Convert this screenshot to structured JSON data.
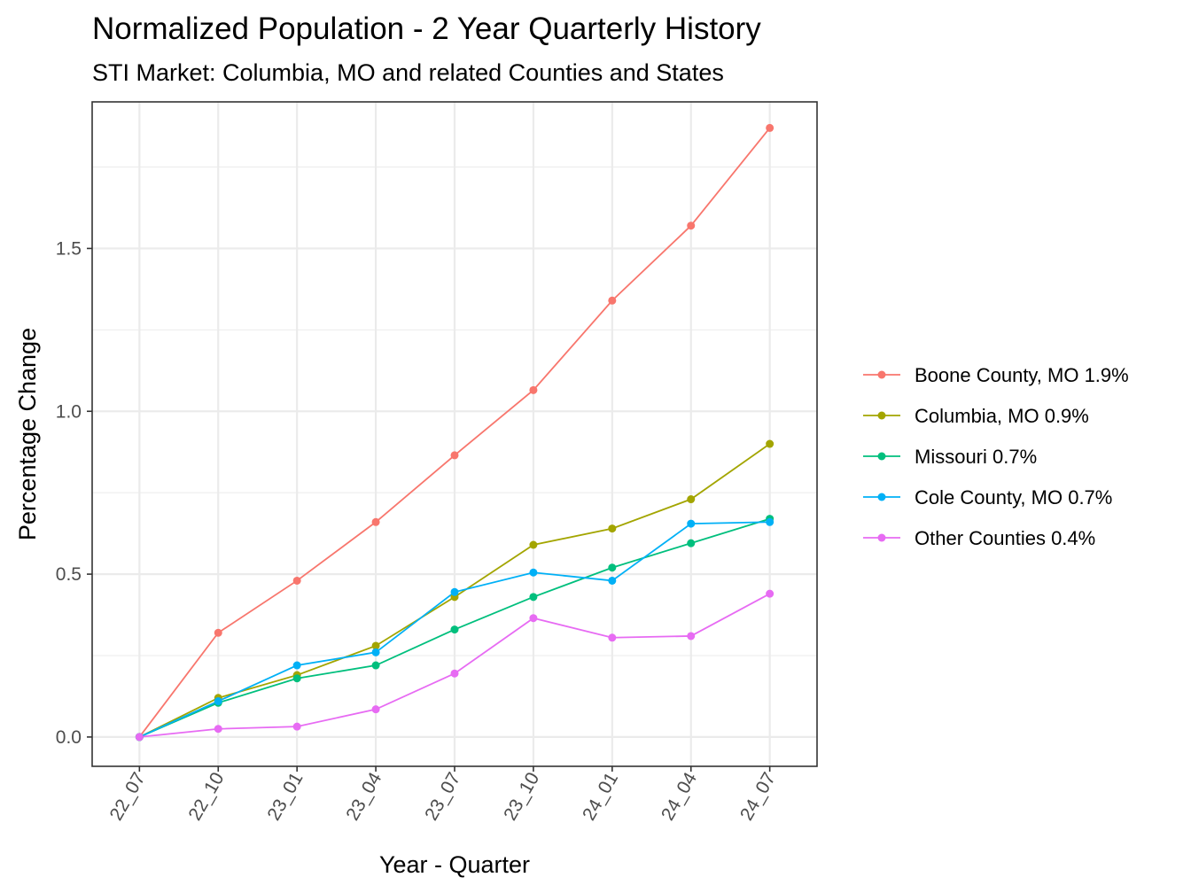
{
  "chart_data": {
    "type": "line",
    "title": "Normalized Population - 2 Year Quarterly History",
    "subtitle": "STI Market: Columbia, MO and related Counties and States",
    "xlabel": "Year - Quarter",
    "ylabel": "Percentage Change",
    "categories": [
      "22_07",
      "22_10",
      "23_01",
      "23_04",
      "23_07",
      "23_10",
      "24_01",
      "24_04",
      "24_07"
    ],
    "yticks": [
      0.0,
      0.5,
      1.0,
      1.5
    ],
    "ytick_labels": [
      "0.0",
      "0.5",
      "1.0",
      "1.5"
    ],
    "ylim": [
      -0.09,
      1.95
    ],
    "grid": true,
    "legend_position": "right",
    "series": [
      {
        "name": "Boone County, MO 1.9%",
        "color": "#F8766D",
        "values": [
          0.0,
          0.32,
          0.48,
          0.66,
          0.865,
          1.065,
          1.34,
          1.57,
          1.87
        ]
      },
      {
        "name": "Columbia, MO 0.9%",
        "color": "#A3A500",
        "values": [
          0.0,
          0.12,
          0.19,
          0.28,
          0.43,
          0.59,
          0.64,
          0.73,
          0.9
        ]
      },
      {
        "name": "Missouri 0.7%",
        "color": "#00BF7D",
        "values": [
          0.0,
          0.105,
          0.18,
          0.22,
          0.33,
          0.43,
          0.52,
          0.595,
          0.67
        ]
      },
      {
        "name": "Cole County, MO 0.7%",
        "color": "#00B0F6",
        "values": [
          0.0,
          0.11,
          0.22,
          0.26,
          0.445,
          0.505,
          0.48,
          0.655,
          0.66
        ]
      },
      {
        "name": "Other Counties 0.4%",
        "color": "#E76BF3",
        "values": [
          0.0,
          0.025,
          0.032,
          0.085,
          0.195,
          0.365,
          0.305,
          0.31,
          0.44
        ]
      }
    ]
  }
}
